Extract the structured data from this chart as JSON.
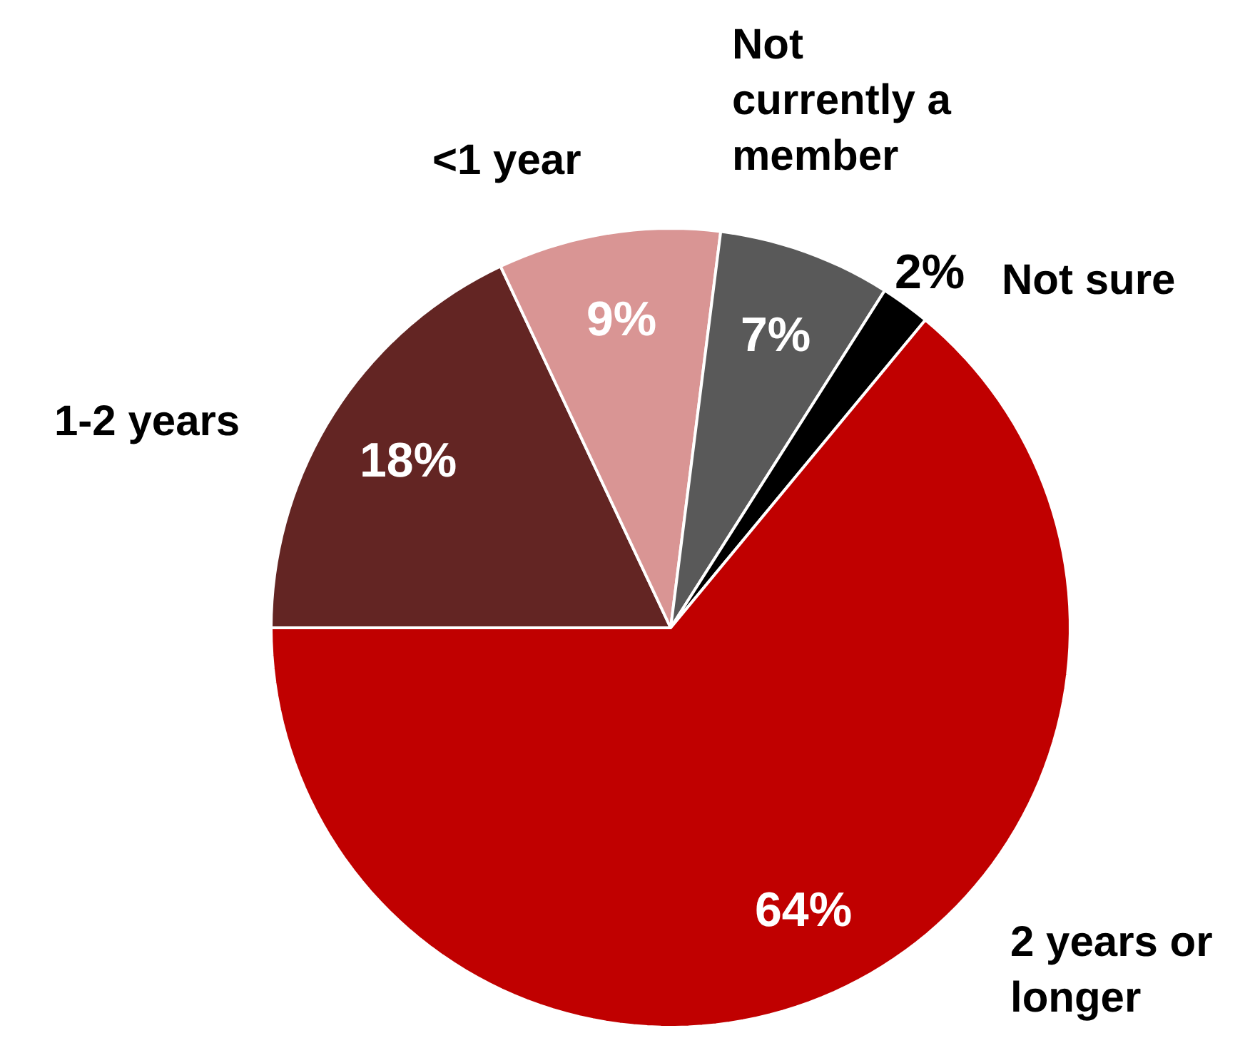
{
  "chart_data": {
    "type": "pie",
    "categories": [
      "1-2 years",
      "<1 year",
      "Not currently a member",
      "Not sure",
      "2 years or longer"
    ],
    "values": [
      18,
      9,
      7,
      2,
      64
    ],
    "value_labels": [
      "18%",
      "9%",
      "7%",
      "2%",
      "64%"
    ],
    "colors": [
      "#632523",
      "#d99594",
      "#595959",
      "#000000",
      "#c00000"
    ],
    "legend": false
  }
}
